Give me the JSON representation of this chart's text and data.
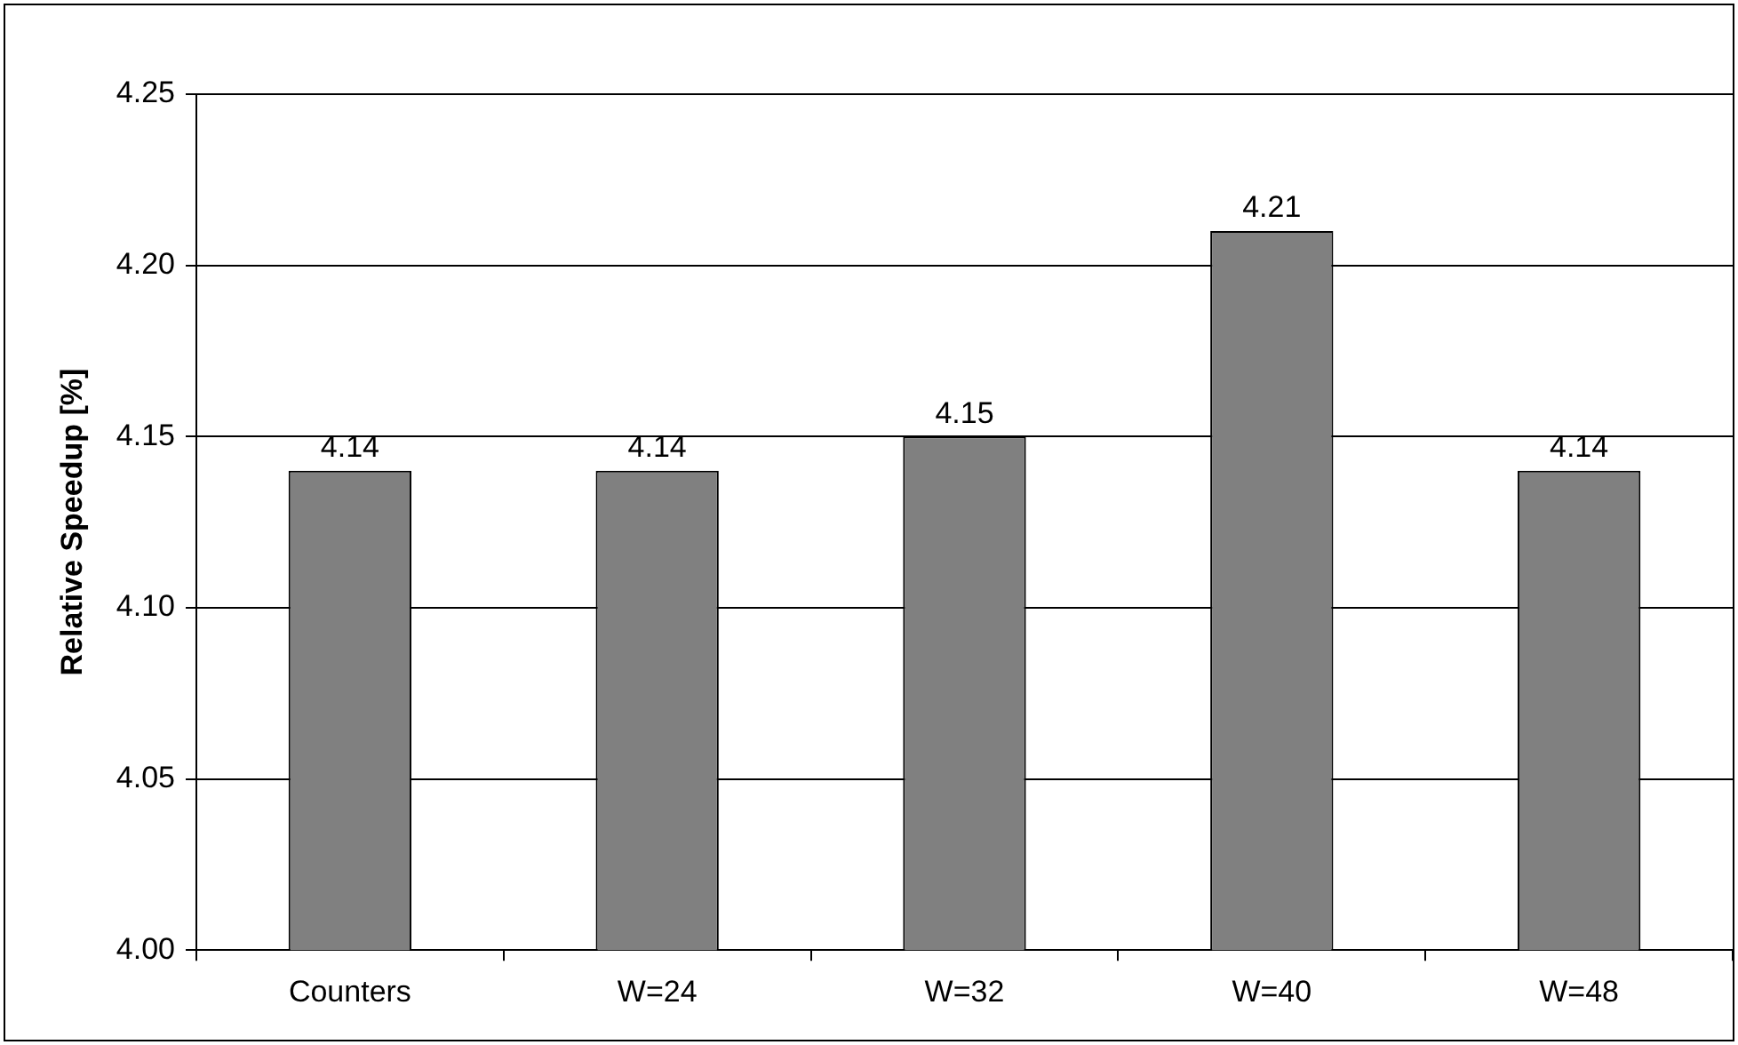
{
  "chart_data": {
    "type": "bar",
    "ylabel": "Relative Speedup [%]",
    "categories": [
      "Counters",
      "W=24",
      "W=32",
      "W=40",
      "W=48"
    ],
    "values": [
      4.14,
      4.14,
      4.15,
      4.21,
      4.14
    ],
    "color": "#808080",
    "ylim": [
      4.0,
      4.25
    ],
    "yticks": [
      {
        "value": 4.0,
        "label": "4.00"
      },
      {
        "value": 4.05,
        "label": "4.05"
      },
      {
        "value": 4.1,
        "label": "4.10"
      },
      {
        "value": 4.15,
        "label": "4.15"
      },
      {
        "value": 4.2,
        "label": "4.20"
      },
      {
        "value": 4.25,
        "label": "4.25"
      }
    ],
    "grid": "y",
    "legend": false,
    "data_labels": true
  }
}
